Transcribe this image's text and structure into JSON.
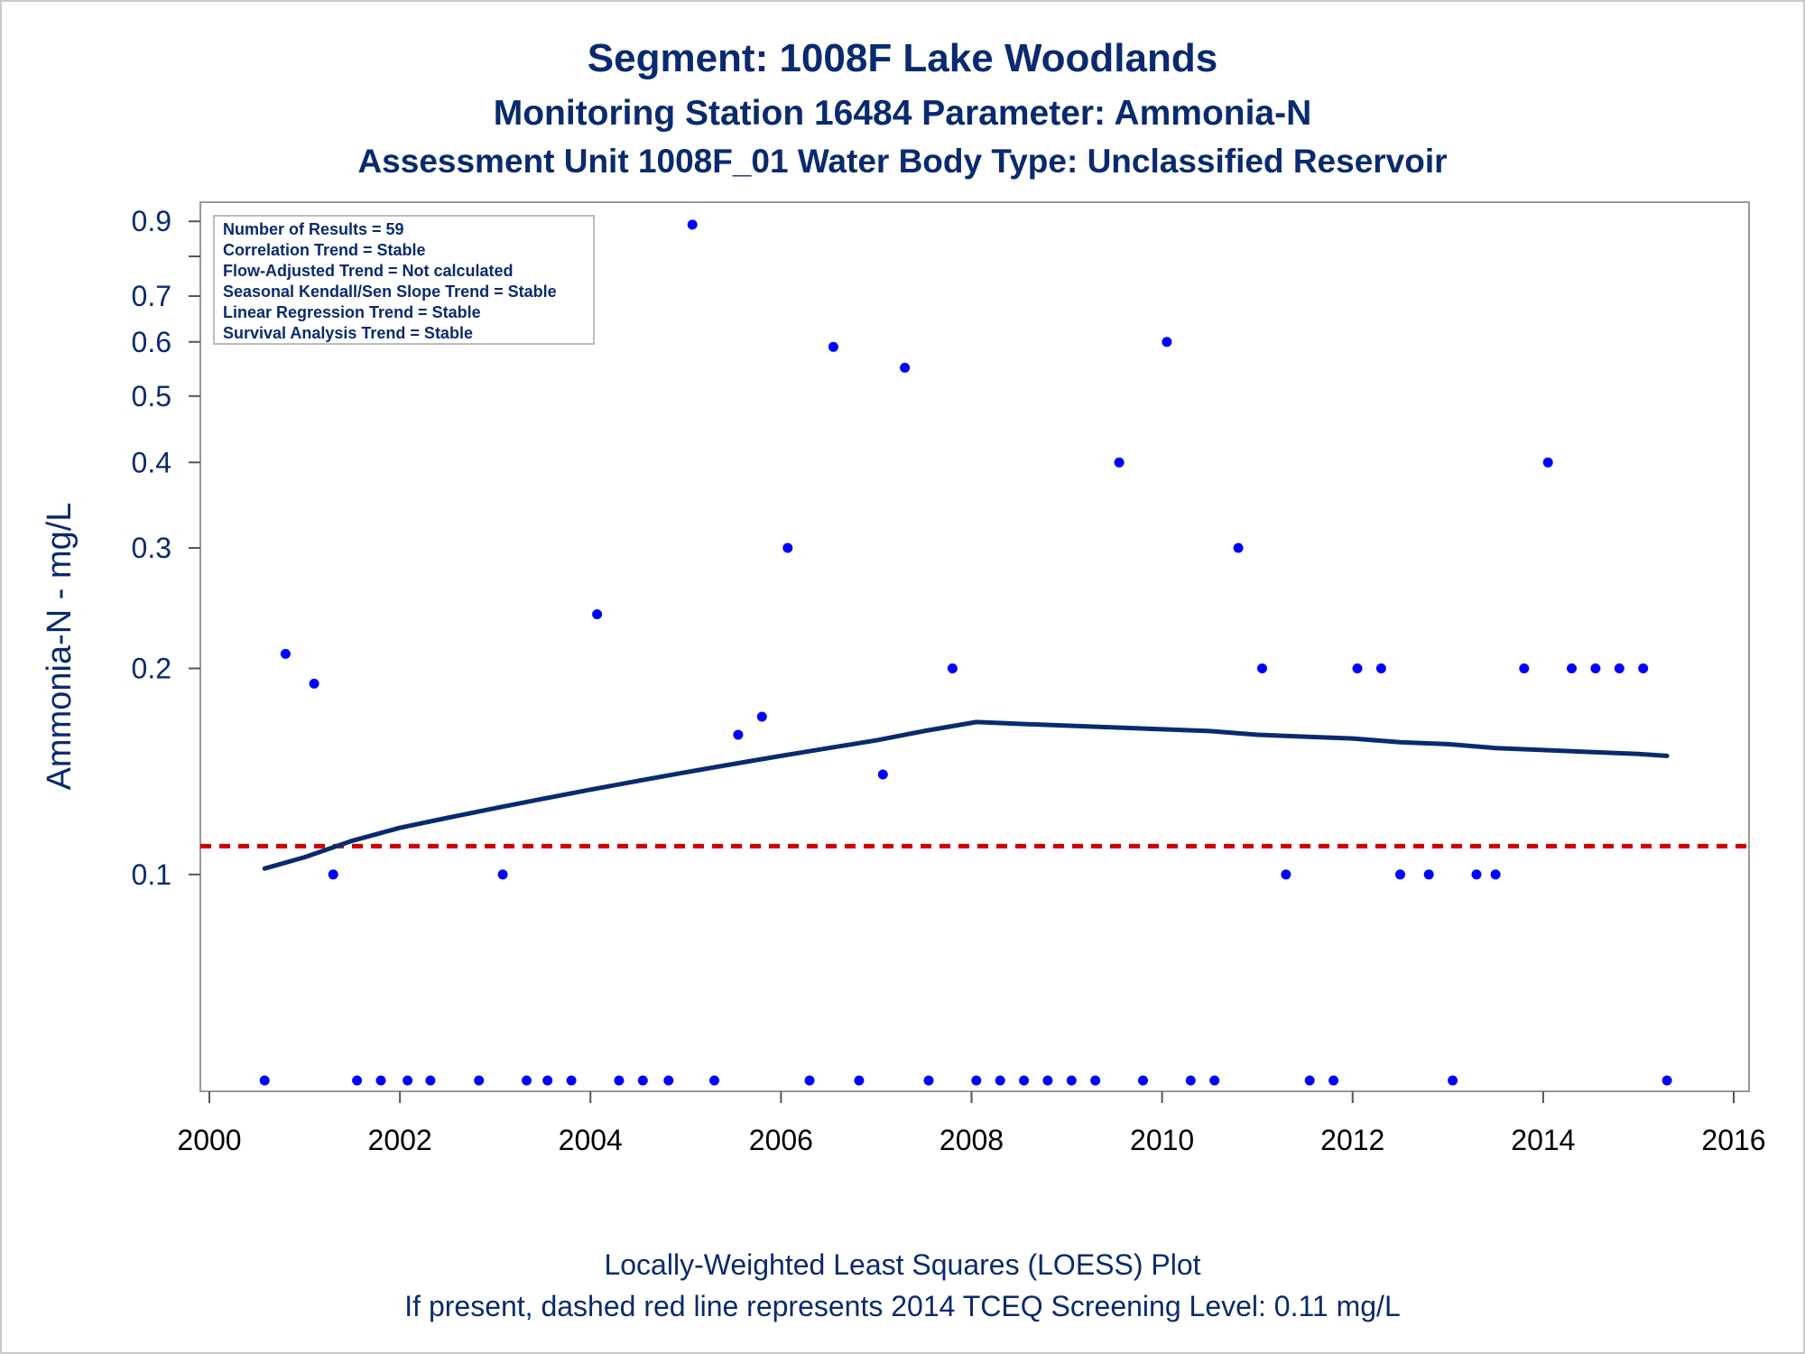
{
  "chart_data": {
    "type": "scatter",
    "title": "Segment: 1008F  Lake Woodlands",
    "subtitle1": "Monitoring Station 16484 Parameter: Ammonia-N",
    "subtitle2": "Assessment Unit 1008F_01   Water Body Type: Unclassified Reservoir",
    "ylabel": "Ammonia-N - mg/L",
    "footnote1": "Locally-Weighted Least Squares (LOESS) Plot",
    "footnote2": "If present, dashed red line represents 2014 TCEQ Screening Level: 0.11 mg/L",
    "y_scale": "log",
    "xlim": [
      2000,
      2016
    ],
    "ylim": [
      0.05,
      0.92
    ],
    "x_ticks": [
      2000,
      2002,
      2004,
      2006,
      2008,
      2010,
      2012,
      2014,
      2016
    ],
    "y_ticks": [
      0.1,
      0.2,
      0.3,
      0.4,
      0.5,
      0.6,
      0.7,
      0.9
    ],
    "y_minor_ticks": [
      0.8
    ],
    "screening_level": 0.11,
    "colors": {
      "points": "#0000ff",
      "loess": "#0a2a6e",
      "screening": "#d00000",
      "text": "#0a2a6e"
    },
    "legend_position": "top-left",
    "stats": [
      "Number of Results = 59",
      "Correlation Trend = Stable",
      "Flow-Adjusted Trend = Not calculated",
      "Seasonal Kendall/Sen Slope Trend = Stable",
      "Linear Regression Trend = Stable",
      "Survival Analysis Trend = Stable"
    ],
    "points": [
      {
        "x": 2000.58,
        "y": 0.05
      },
      {
        "x": 2000.8,
        "y": 0.21
      },
      {
        "x": 2001.1,
        "y": 0.19
      },
      {
        "x": 2001.3,
        "y": 0.1
      },
      {
        "x": 2001.55,
        "y": 0.05
      },
      {
        "x": 2001.8,
        "y": 0.05
      },
      {
        "x": 2002.08,
        "y": 0.05
      },
      {
        "x": 2002.32,
        "y": 0.05
      },
      {
        "x": 2002.83,
        "y": 0.05
      },
      {
        "x": 2003.08,
        "y": 0.1
      },
      {
        "x": 2003.33,
        "y": 0.05
      },
      {
        "x": 2003.55,
        "y": 0.05
      },
      {
        "x": 2003.8,
        "y": 0.05
      },
      {
        "x": 2004.07,
        "y": 0.24
      },
      {
        "x": 2004.3,
        "y": 0.05
      },
      {
        "x": 2004.55,
        "y": 0.05
      },
      {
        "x": 2004.82,
        "y": 0.05
      },
      {
        "x": 2005.07,
        "y": 0.89
      },
      {
        "x": 2005.3,
        "y": 0.05
      },
      {
        "x": 2005.55,
        "y": 0.16
      },
      {
        "x": 2005.8,
        "y": 0.17
      },
      {
        "x": 2006.07,
        "y": 0.3
      },
      {
        "x": 2006.3,
        "y": 0.05
      },
      {
        "x": 2006.55,
        "y": 0.59
      },
      {
        "x": 2006.82,
        "y": 0.05
      },
      {
        "x": 2007.07,
        "y": 0.14
      },
      {
        "x": 2007.3,
        "y": 0.55
      },
      {
        "x": 2007.55,
        "y": 0.05
      },
      {
        "x": 2007.8,
        "y": 0.2
      },
      {
        "x": 2008.05,
        "y": 0.05
      },
      {
        "x": 2008.3,
        "y": 0.05
      },
      {
        "x": 2008.55,
        "y": 0.05
      },
      {
        "x": 2008.8,
        "y": 0.05
      },
      {
        "x": 2009.05,
        "y": 0.05
      },
      {
        "x": 2009.3,
        "y": 0.05
      },
      {
        "x": 2009.55,
        "y": 0.4
      },
      {
        "x": 2009.8,
        "y": 0.05
      },
      {
        "x": 2010.05,
        "y": 0.6
      },
      {
        "x": 2010.3,
        "y": 0.05
      },
      {
        "x": 2010.55,
        "y": 0.05
      },
      {
        "x": 2010.8,
        "y": 0.3
      },
      {
        "x": 2011.05,
        "y": 0.2
      },
      {
        "x": 2011.3,
        "y": 0.1
      },
      {
        "x": 2011.55,
        "y": 0.05
      },
      {
        "x": 2011.8,
        "y": 0.05
      },
      {
        "x": 2012.05,
        "y": 0.2
      },
      {
        "x": 2012.3,
        "y": 0.2
      },
      {
        "x": 2012.5,
        "y": 0.1
      },
      {
        "x": 2012.8,
        "y": 0.1
      },
      {
        "x": 2013.05,
        "y": 0.05
      },
      {
        "x": 2013.3,
        "y": 0.1
      },
      {
        "x": 2013.5,
        "y": 0.1
      },
      {
        "x": 2013.8,
        "y": 0.2
      },
      {
        "x": 2014.05,
        "y": 0.4
      },
      {
        "x": 2014.3,
        "y": 0.2
      },
      {
        "x": 2014.55,
        "y": 0.2
      },
      {
        "x": 2014.8,
        "y": 0.2
      },
      {
        "x": 2015.05,
        "y": 0.2
      },
      {
        "x": 2015.3,
        "y": 0.05
      }
    ],
    "loess": [
      {
        "x": 2000.58,
        "y": 0.102
      },
      {
        "x": 2001.0,
        "y": 0.106
      },
      {
        "x": 2001.5,
        "y": 0.112
      },
      {
        "x": 2002.0,
        "y": 0.117
      },
      {
        "x": 2002.5,
        "y": 0.121
      },
      {
        "x": 2003.0,
        "y": 0.125
      },
      {
        "x": 2003.5,
        "y": 0.129
      },
      {
        "x": 2004.0,
        "y": 0.133
      },
      {
        "x": 2004.5,
        "y": 0.137
      },
      {
        "x": 2005.0,
        "y": 0.141
      },
      {
        "x": 2005.5,
        "y": 0.145
      },
      {
        "x": 2006.0,
        "y": 0.149
      },
      {
        "x": 2006.5,
        "y": 0.153
      },
      {
        "x": 2007.0,
        "y": 0.157
      },
      {
        "x": 2007.5,
        "y": 0.162
      },
      {
        "x": 2008.05,
        "y": 0.167
      },
      {
        "x": 2008.5,
        "y": 0.166
      },
      {
        "x": 2009.0,
        "y": 0.165
      },
      {
        "x": 2009.5,
        "y": 0.164
      },
      {
        "x": 2010.0,
        "y": 0.163
      },
      {
        "x": 2010.5,
        "y": 0.162
      },
      {
        "x": 2011.0,
        "y": 0.16
      },
      {
        "x": 2011.5,
        "y": 0.159
      },
      {
        "x": 2012.0,
        "y": 0.158
      },
      {
        "x": 2012.5,
        "y": 0.156
      },
      {
        "x": 2013.0,
        "y": 0.155
      },
      {
        "x": 2013.5,
        "y": 0.153
      },
      {
        "x": 2014.0,
        "y": 0.152
      },
      {
        "x": 2014.5,
        "y": 0.151
      },
      {
        "x": 2015.0,
        "y": 0.15
      },
      {
        "x": 2015.3,
        "y": 0.149
      }
    ]
  }
}
